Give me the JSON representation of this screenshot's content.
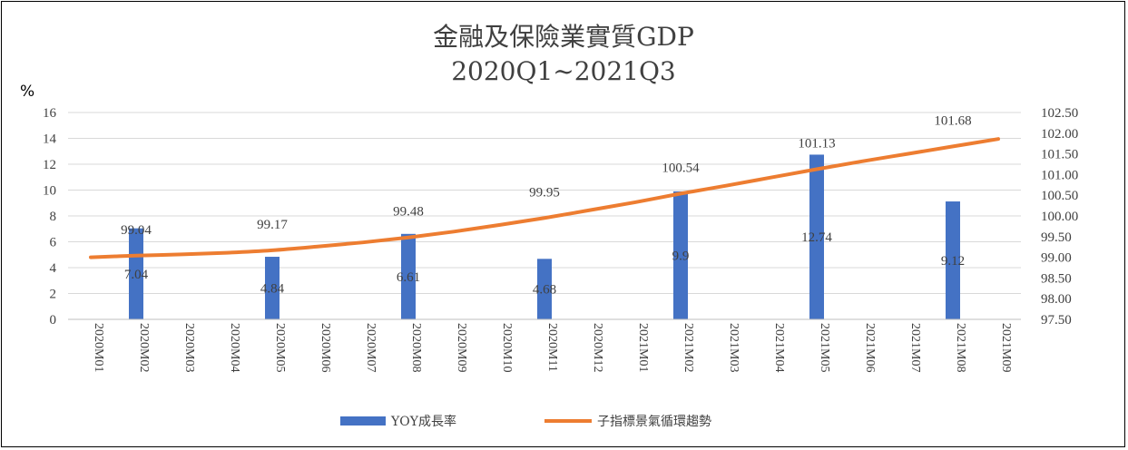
{
  "chart_data": {
    "type": "bar+line",
    "title": "金融及保險業實質GDP",
    "subtitle": "2020Q1~2021Q3",
    "y_left_unit": "%",
    "categories": [
      "2020M01",
      "2020M02",
      "2020M03",
      "2020M04",
      "2020M05",
      "2020M06",
      "2020M07",
      "2020M08",
      "2020M09",
      "2020M10",
      "2020M11",
      "2020M12",
      "2021M01",
      "2021M02",
      "2021M03",
      "2021M04",
      "2021M05",
      "2021M06",
      "2021M07",
      "2021M08",
      "2021M09"
    ],
    "y_left_range": [
      0,
      16
    ],
    "y_left_ticks": [
      "0",
      "2",
      "4",
      "6",
      "8",
      "10",
      "12",
      "14",
      "16"
    ],
    "y_right_range": [
      97.5,
      102.5
    ],
    "y_right_ticks": [
      "97.50",
      "98.00",
      "98.50",
      "99.00",
      "99.50",
      "100.00",
      "100.50",
      "101.00",
      "101.50",
      "102.00",
      "102.50"
    ],
    "bars": {
      "name": "YOY成長率",
      "color": "#4472C4",
      "points": [
        {
          "category": "2020M02",
          "value": 7.04,
          "label": "7.04"
        },
        {
          "category": "2020M05",
          "value": 4.84,
          "label": "4.84"
        },
        {
          "category": "2020M08",
          "value": 6.61,
          "label": "6.61"
        },
        {
          "category": "2020M11",
          "value": 4.68,
          "label": "4.68"
        },
        {
          "category": "2021M02",
          "value": 9.9,
          "label": "9.9"
        },
        {
          "category": "2021M05",
          "value": 12.74,
          "label": "12.74"
        },
        {
          "category": "2021M08",
          "value": 9.12,
          "label": "9.12"
        }
      ]
    },
    "line": {
      "name": "子指標景氣循環趨勢",
      "color": "#ED7D31",
      "values": [
        99.0,
        99.04,
        99.07,
        99.11,
        99.17,
        99.26,
        99.36,
        99.48,
        99.62,
        99.78,
        99.95,
        100.14,
        100.33,
        100.54,
        100.73,
        100.93,
        101.13,
        101.32,
        101.5,
        101.68,
        101.86
      ],
      "labels": [
        {
          "category": "2020M02",
          "label": "99.04"
        },
        {
          "category": "2020M05",
          "label": "99.17"
        },
        {
          "category": "2020M08",
          "label": "99.48"
        },
        {
          "category": "2020M11",
          "label": "99.95"
        },
        {
          "category": "2021M02",
          "label": "100.54"
        },
        {
          "category": "2021M05",
          "label": "101.13"
        },
        {
          "category": "2021M08",
          "label": "101.68"
        }
      ]
    },
    "legend": "bottom-center",
    "grid": true
  }
}
